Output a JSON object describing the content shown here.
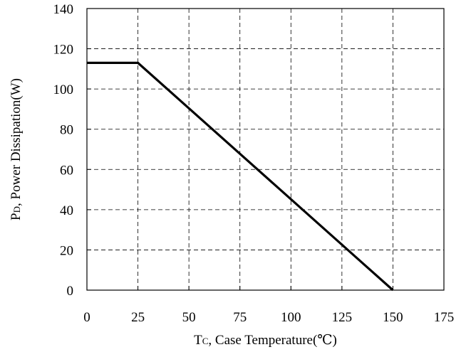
{
  "chart_data": {
    "type": "line",
    "xlabel": {
      "main": "T",
      "sub": "C",
      "rest": ", Case Temperature(℃)"
    },
    "ylabel": {
      "main": "P",
      "sub": "D",
      "rest": ", Power Dissipation(W)"
    },
    "xlim": [
      0,
      175
    ],
    "ylim": [
      0,
      140
    ],
    "xticks": [
      "0",
      "25",
      "50",
      "75",
      "100",
      "125",
      "150",
      "175"
    ],
    "yticks": [
      "0",
      "20",
      "40",
      "60",
      "80",
      "100",
      "120",
      "140"
    ],
    "grid": true,
    "grid_style": "dashed",
    "series": [
      {
        "x": [
          0,
          25,
          150
        ],
        "y": [
          113,
          113,
          0
        ],
        "color": "#000000"
      }
    ]
  }
}
